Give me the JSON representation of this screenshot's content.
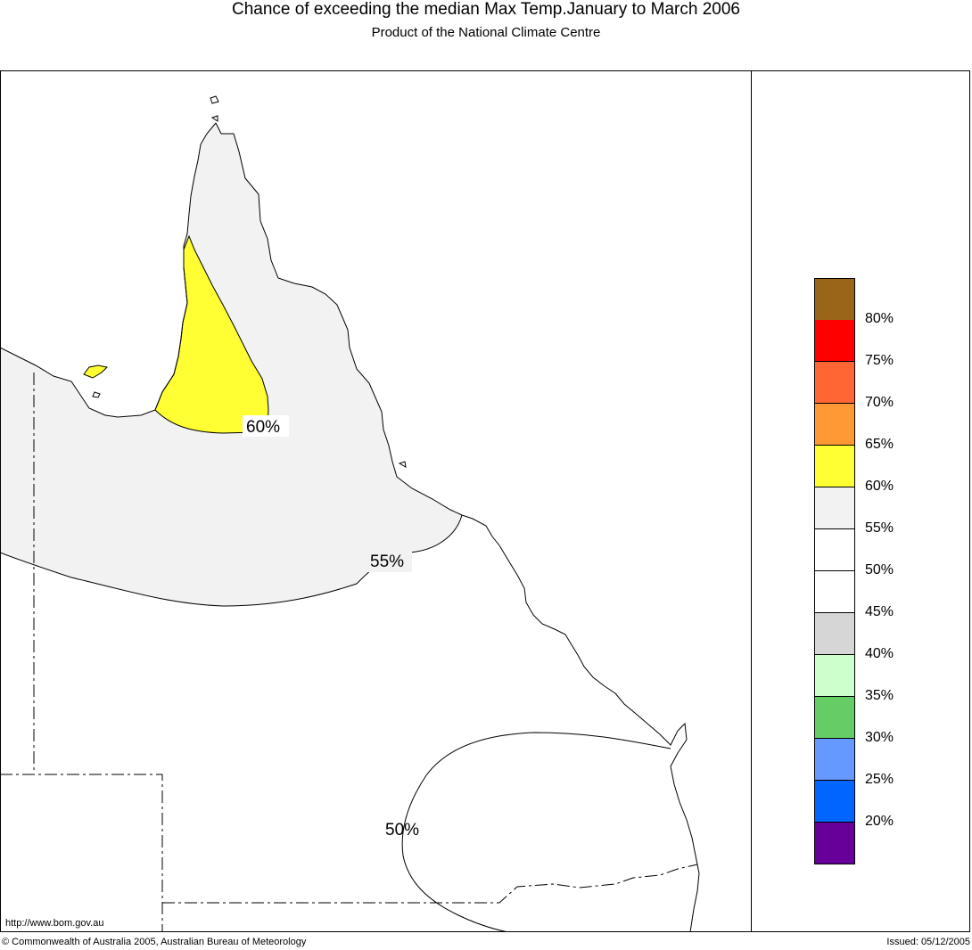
{
  "header": {
    "title": "Chance of exceeding the median Max Temp.January to March 2006",
    "subtitle": "Product of the National Climate Centre"
  },
  "map": {
    "contour_labels": [
      "60%",
      "55%",
      "50%"
    ],
    "url": "http://www.bom.gov.au"
  },
  "legend": {
    "swatches": [
      {
        "color": "#996619"
      },
      {
        "color": "#ff0000"
      },
      {
        "color": "#ff6633"
      },
      {
        "color": "#ff9933"
      },
      {
        "color": "#ffff33"
      },
      {
        "color": "#f2f2f2"
      },
      {
        "color": "#ffffff"
      },
      {
        "color": "#ffffff"
      },
      {
        "color": "#d6d6d6"
      },
      {
        "color": "#ccffcc"
      },
      {
        "color": "#66cc66"
      },
      {
        "color": "#6699ff"
      },
      {
        "color": "#0066ff"
      },
      {
        "color": "#660099"
      }
    ],
    "labels": [
      "80%",
      "75%",
      "70%",
      "65%",
      "60%",
      "55%",
      "50%",
      "45%",
      "40%",
      "35%",
      "30%",
      "25%",
      "20%"
    ]
  },
  "footer": {
    "copyright": "© Commonwealth of Australia 2005, Australian Bureau of Meteorology",
    "issued": "Issued: 05/12/2005"
  }
}
